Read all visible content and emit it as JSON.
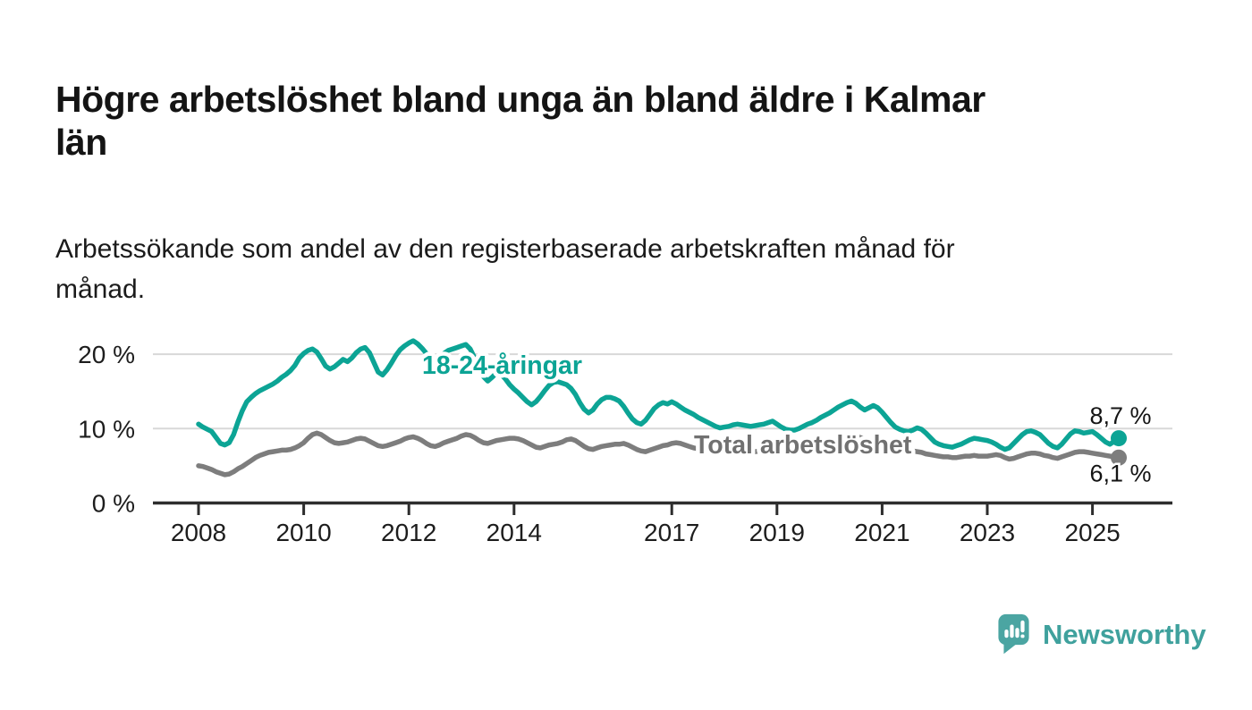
{
  "header": {
    "title": "Högre arbetslöshet bland unga än bland äldre i Kalmar län",
    "title_lines": [
      "Högre arbetslöshet bland unga än bland äldre i Kalmar",
      "län"
    ],
    "subtitle": "Arbetssökande som andel av den registerbaserade arbetskraften månad för månad.",
    "subtitle_lines": [
      "Arbetssökande som andel av den registerbaserade arbetskraften månad för",
      "månad."
    ]
  },
  "chart_data": {
    "type": "line",
    "title": "",
    "xlabel": "",
    "ylabel": "",
    "x_unit": "monthly",
    "x_start": "2008-01",
    "x_end": "2025-07",
    "ylim": [
      0,
      24
    ],
    "grid": "horizontal",
    "legend_position": "inline-labels",
    "y_ticks": [
      {
        "value": 0,
        "label": "0 %"
      },
      {
        "value": 10,
        "label": "10 %"
      },
      {
        "value": 20,
        "label": "20 %"
      }
    ],
    "x_ticks": [
      {
        "year": 2008,
        "label": "2008"
      },
      {
        "year": 2010,
        "label": "2010"
      },
      {
        "year": 2012,
        "label": "2012"
      },
      {
        "year": 2014,
        "label": "2014"
      },
      {
        "year": 2017,
        "label": "2017"
      },
      {
        "year": 2019,
        "label": "2019"
      },
      {
        "year": 2021,
        "label": "2021"
      },
      {
        "year": 2023,
        "label": "2023"
      },
      {
        "year": 2025,
        "label": "2025"
      }
    ],
    "series": [
      {
        "id": "total",
        "label": "Total arbetslöshet",
        "color": "#7d7d7d",
        "label_color": "#717171",
        "end_label": "6,1 %",
        "last_value": 6.1,
        "values": [
          5.0,
          4.9,
          4.7,
          4.5,
          4.2,
          4.0,
          3.8,
          3.9,
          4.2,
          4.6,
          4.9,
          5.3,
          5.7,
          6.1,
          6.4,
          6.6,
          6.8,
          6.9,
          7.0,
          7.1,
          7.1,
          7.2,
          7.4,
          7.7,
          8.1,
          8.7,
          9.2,
          9.4,
          9.2,
          8.8,
          8.4,
          8.1,
          8.0,
          8.1,
          8.2,
          8.4,
          8.6,
          8.7,
          8.6,
          8.3,
          8.0,
          7.7,
          7.6,
          7.7,
          7.9,
          8.1,
          8.3,
          8.6,
          8.8,
          8.9,
          8.7,
          8.4,
          8.0,
          7.7,
          7.6,
          7.8,
          8.1,
          8.3,
          8.5,
          8.7,
          9.0,
          9.2,
          9.1,
          8.8,
          8.4,
          8.1,
          8.0,
          8.2,
          8.4,
          8.5,
          8.6,
          8.7,
          8.7,
          8.6,
          8.4,
          8.1,
          7.8,
          7.5,
          7.4,
          7.6,
          7.8,
          7.9,
          8.0,
          8.2,
          8.5,
          8.6,
          8.4,
          8.0,
          7.6,
          7.3,
          7.2,
          7.4,
          7.6,
          7.7,
          7.8,
          7.9,
          7.9,
          8.0,
          7.8,
          7.5,
          7.2,
          7.0,
          6.9,
          7.1,
          7.3,
          7.5,
          7.7,
          7.8,
          8.0,
          8.1,
          8.0,
          7.8,
          7.6,
          7.4,
          7.3,
          7.4,
          7.5,
          7.5,
          7.6,
          7.6,
          7.5,
          7.4,
          7.2,
          7.1,
          7.0,
          6.9,
          6.8,
          6.9,
          7.0,
          7.0,
          7.1,
          7.1,
          7.2,
          7.1,
          7.0,
          6.9,
          6.9,
          7.0,
          7.1,
          7.2,
          7.3,
          7.4,
          7.5,
          7.6,
          7.8,
          8.1,
          8.5,
          8.8,
          9.0,
          9.1,
          9.0,
          8.8,
          8.6,
          8.5,
          8.4,
          8.3,
          8.2,
          8.0,
          7.8,
          7.6,
          7.4,
          7.2,
          7.1,
          7.0,
          6.9,
          6.8,
          6.6,
          6.5,
          6.4,
          6.3,
          6.2,
          6.2,
          6.1,
          6.1,
          6.2,
          6.3,
          6.3,
          6.4,
          6.3,
          6.3,
          6.3,
          6.4,
          6.5,
          6.4,
          6.1,
          5.9,
          6.0,
          6.2,
          6.4,
          6.6,
          6.7,
          6.7,
          6.6,
          6.4,
          6.3,
          6.1,
          6.0,
          6.2,
          6.4,
          6.6,
          6.8,
          6.9,
          6.9,
          6.8,
          6.7,
          6.6,
          6.5,
          6.4,
          6.3,
          6.2,
          6.1
        ]
      },
      {
        "id": "youth",
        "label": "18-24-åringar",
        "color": "#0ca495",
        "label_color": "#0ca495",
        "end_label": "8,7 %",
        "last_value": 8.7,
        "values": [
          10.6,
          10.2,
          9.9,
          9.6,
          8.8,
          8.0,
          7.8,
          8.1,
          9.2,
          10.9,
          12.4,
          13.6,
          14.2,
          14.7,
          15.1,
          15.4,
          15.7,
          16.0,
          16.4,
          16.9,
          17.3,
          17.8,
          18.5,
          19.5,
          20.1,
          20.5,
          20.7,
          20.3,
          19.4,
          18.4,
          18.0,
          18.3,
          18.8,
          19.3,
          19.0,
          19.5,
          20.2,
          20.7,
          20.9,
          20.2,
          18.9,
          17.6,
          17.2,
          17.9,
          18.8,
          19.8,
          20.6,
          21.1,
          21.5,
          21.8,
          21.4,
          20.8,
          20.1,
          19.4,
          19.2,
          19.6,
          20.1,
          20.5,
          20.7,
          20.9,
          21.1,
          21.3,
          20.7,
          19.5,
          18.2,
          17.0,
          16.4,
          16.9,
          17.5,
          17.3,
          16.7,
          15.9,
          15.3,
          14.8,
          14.2,
          13.6,
          13.2,
          13.6,
          14.3,
          15.1,
          15.8,
          16.2,
          16.3,
          16.1,
          15.9,
          15.4,
          14.6,
          13.5,
          12.6,
          12.1,
          12.5,
          13.3,
          13.9,
          14.2,
          14.2,
          14.0,
          13.7,
          13.0,
          12.1,
          11.3,
          10.8,
          10.6,
          11.1,
          11.9,
          12.7,
          13.2,
          13.5,
          13.3,
          13.6,
          13.3,
          12.9,
          12.5,
          12.2,
          11.9,
          11.5,
          11.2,
          10.9,
          10.6,
          10.3,
          10.1,
          10.2,
          10.3,
          10.5,
          10.6,
          10.5,
          10.4,
          10.3,
          10.4,
          10.5,
          10.6,
          10.8,
          11.0,
          10.6,
          10.2,
          9.9,
          9.8,
          9.8,
          10.0,
          10.3,
          10.6,
          10.8,
          11.1,
          11.5,
          11.8,
          12.1,
          12.5,
          12.9,
          13.2,
          13.5,
          13.7,
          13.4,
          12.9,
          12.5,
          12.8,
          13.1,
          12.8,
          12.2,
          11.5,
          10.8,
          10.2,
          9.9,
          9.7,
          9.6,
          9.8,
          10.1,
          9.9,
          9.4,
          8.8,
          8.2,
          7.9,
          7.7,
          7.6,
          7.5,
          7.7,
          7.9,
          8.2,
          8.5,
          8.7,
          8.6,
          8.5,
          8.4,
          8.2,
          7.9,
          7.5,
          7.2,
          7.4,
          8.0,
          8.6,
          9.2,
          9.6,
          9.7,
          9.5,
          9.2,
          8.6,
          8.0,
          7.6,
          7.4,
          7.9,
          8.6,
          9.3,
          9.7,
          9.6,
          9.4,
          9.5,
          9.6,
          9.2,
          8.7,
          8.2,
          7.9,
          8.3,
          8.7
        ]
      }
    ],
    "colors": {
      "gridline": "#d8d8d8",
      "axis": "#2d2d2d",
      "tick_label": "#1d1d1d",
      "end_label": "#141414"
    }
  },
  "footer": {
    "brand": "Newsworthy",
    "brand_color": "#3fa19d",
    "icon_color": "#4ba5a2"
  }
}
